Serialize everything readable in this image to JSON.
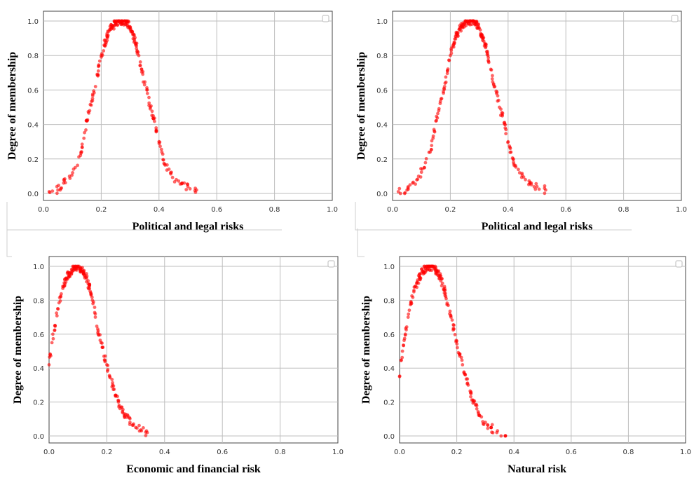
{
  "chart_data": [
    {
      "type": "scatter",
      "xlabel": "Political and legal risks",
      "ylabel": "Degree of membership",
      "xlim": [
        0,
        1
      ],
      "ylim": [
        0,
        1
      ],
      "xticks": [
        "0.0",
        "0.2",
        "0.4",
        "0.6",
        "0.8",
        "1.0"
      ],
      "yticks": [
        "0.0",
        "0.2",
        "0.4",
        "0.6",
        "0.8",
        "1.0"
      ],
      "grid": true,
      "point_color": "#ff0000",
      "peak_x": 0.27,
      "peak_y": 1.0,
      "x_range": [
        0.02,
        0.53
      ],
      "points": [
        [
          0.02,
          0.01
        ],
        [
          0.05,
          0.02
        ],
        [
          0.07,
          0.06
        ],
        [
          0.09,
          0.1
        ],
        [
          0.11,
          0.15
        ],
        [
          0.13,
          0.24
        ],
        [
          0.14,
          0.32
        ],
        [
          0.15,
          0.42
        ],
        [
          0.16,
          0.48
        ],
        [
          0.17,
          0.55
        ],
        [
          0.18,
          0.62
        ],
        [
          0.19,
          0.71
        ],
        [
          0.2,
          0.8
        ],
        [
          0.21,
          0.86
        ],
        [
          0.22,
          0.91
        ],
        [
          0.23,
          0.95
        ],
        [
          0.24,
          0.97
        ],
        [
          0.25,
          0.99
        ],
        [
          0.26,
          1.0
        ],
        [
          0.27,
          1.0
        ],
        [
          0.28,
          1.0
        ],
        [
          0.29,
          0.99
        ],
        [
          0.3,
          0.96
        ],
        [
          0.31,
          0.92
        ],
        [
          0.32,
          0.87
        ],
        [
          0.33,
          0.8
        ],
        [
          0.34,
          0.72
        ],
        [
          0.35,
          0.63
        ],
        [
          0.36,
          0.58
        ],
        [
          0.37,
          0.5
        ],
        [
          0.38,
          0.45
        ],
        [
          0.39,
          0.38
        ],
        [
          0.4,
          0.3
        ],
        [
          0.41,
          0.24
        ],
        [
          0.42,
          0.17
        ],
        [
          0.44,
          0.12
        ],
        [
          0.46,
          0.08
        ],
        [
          0.48,
          0.06
        ],
        [
          0.5,
          0.04
        ],
        [
          0.53,
          0.02
        ]
      ]
    },
    {
      "type": "scatter",
      "xlabel": "Political and legal risks",
      "ylabel": "Degree of membership",
      "xlim": [
        0,
        1
      ],
      "ylim": [
        0,
        1
      ],
      "xticks": [
        "0.0",
        "0.2",
        "0.4",
        "0.6",
        "0.8",
        "1.0"
      ],
      "yticks": [
        "0.0",
        "0.2",
        "0.4",
        "0.6",
        "0.8",
        "1.0"
      ],
      "grid": true,
      "point_color": "#ff0000",
      "peak_x": 0.27,
      "peak_y": 1.0,
      "x_range": [
        0.02,
        0.53
      ],
      "points": [
        [
          0.02,
          0.01
        ],
        [
          0.05,
          0.02
        ],
        [
          0.07,
          0.06
        ],
        [
          0.09,
          0.1
        ],
        [
          0.11,
          0.15
        ],
        [
          0.13,
          0.24
        ],
        [
          0.14,
          0.32
        ],
        [
          0.15,
          0.42
        ],
        [
          0.16,
          0.48
        ],
        [
          0.17,
          0.55
        ],
        [
          0.18,
          0.62
        ],
        [
          0.19,
          0.71
        ],
        [
          0.2,
          0.8
        ],
        [
          0.21,
          0.86
        ],
        [
          0.22,
          0.91
        ],
        [
          0.23,
          0.95
        ],
        [
          0.24,
          0.97
        ],
        [
          0.25,
          0.99
        ],
        [
          0.26,
          1.0
        ],
        [
          0.27,
          1.0
        ],
        [
          0.28,
          1.0
        ],
        [
          0.29,
          0.99
        ],
        [
          0.3,
          0.96
        ],
        [
          0.31,
          0.92
        ],
        [
          0.32,
          0.87
        ],
        [
          0.33,
          0.8
        ],
        [
          0.34,
          0.72
        ],
        [
          0.35,
          0.63
        ],
        [
          0.36,
          0.58
        ],
        [
          0.37,
          0.5
        ],
        [
          0.38,
          0.45
        ],
        [
          0.39,
          0.38
        ],
        [
          0.4,
          0.3
        ],
        [
          0.41,
          0.24
        ],
        [
          0.42,
          0.17
        ],
        [
          0.44,
          0.12
        ],
        [
          0.46,
          0.08
        ],
        [
          0.48,
          0.06
        ],
        [
          0.5,
          0.04
        ],
        [
          0.53,
          0.02
        ]
      ]
    },
    {
      "type": "scatter",
      "xlabel": "Economic and financial risk",
      "ylabel": "Degree of membership",
      "xlim": [
        0,
        1
      ],
      "ylim": [
        0,
        1
      ],
      "xticks": [
        "0.0",
        "0.2",
        "0.4",
        "0.6",
        "0.8",
        "1.0"
      ],
      "yticks": [
        "0.0",
        "0.2",
        "0.4",
        "0.6",
        "0.8",
        "1.0"
      ],
      "grid": true,
      "point_color": "#ff0000",
      "peak_x": 0.1,
      "peak_y": 1.0,
      "x_range": [
        0.0,
        0.34
      ],
      "points": [
        [
          0.0,
          0.42
        ],
        [
          0.01,
          0.55
        ],
        [
          0.02,
          0.65
        ],
        [
          0.03,
          0.75
        ],
        [
          0.04,
          0.82
        ],
        [
          0.05,
          0.88
        ],
        [
          0.06,
          0.93
        ],
        [
          0.07,
          0.96
        ],
        [
          0.08,
          0.98
        ],
        [
          0.09,
          1.0
        ],
        [
          0.1,
          1.0
        ],
        [
          0.11,
          0.99
        ],
        [
          0.12,
          0.97
        ],
        [
          0.13,
          0.93
        ],
        [
          0.14,
          0.87
        ],
        [
          0.15,
          0.8
        ],
        [
          0.16,
          0.72
        ],
        [
          0.17,
          0.62
        ],
        [
          0.18,
          0.55
        ],
        [
          0.19,
          0.47
        ],
        [
          0.2,
          0.42
        ],
        [
          0.21,
          0.35
        ],
        [
          0.22,
          0.3
        ],
        [
          0.23,
          0.24
        ],
        [
          0.24,
          0.2
        ],
        [
          0.25,
          0.17
        ],
        [
          0.26,
          0.13
        ],
        [
          0.27,
          0.11
        ],
        [
          0.28,
          0.08
        ],
        [
          0.3,
          0.05
        ],
        [
          0.32,
          0.03
        ],
        [
          0.34,
          0.02
        ]
      ]
    },
    {
      "type": "scatter",
      "xlabel": "Natural risk",
      "ylabel": "Degree of membership",
      "xlim": [
        0,
        1
      ],
      "ylim": [
        0,
        1
      ],
      "xticks": [
        "0.0",
        "0.2",
        "0.4",
        "0.6",
        "0.8",
        "1.0"
      ],
      "yticks": [
        "0.0",
        "0.2",
        "0.4",
        "0.6",
        "0.8",
        "1.0"
      ],
      "grid": true,
      "point_color": "#ff0000",
      "peak_x": 0.11,
      "peak_y": 1.0,
      "x_range": [
        0.0,
        0.37
      ],
      "points": [
        [
          0.0,
          0.35
        ],
        [
          0.01,
          0.5
        ],
        [
          0.02,
          0.6
        ],
        [
          0.03,
          0.7
        ],
        [
          0.04,
          0.78
        ],
        [
          0.05,
          0.85
        ],
        [
          0.06,
          0.9
        ],
        [
          0.07,
          0.94
        ],
        [
          0.08,
          0.97
        ],
        [
          0.09,
          0.99
        ],
        [
          0.1,
          1.0
        ],
        [
          0.11,
          1.0
        ],
        [
          0.12,
          0.99
        ],
        [
          0.13,
          0.97
        ],
        [
          0.14,
          0.94
        ],
        [
          0.15,
          0.9
        ],
        [
          0.16,
          0.84
        ],
        [
          0.17,
          0.77
        ],
        [
          0.18,
          0.7
        ],
        [
          0.19,
          0.63
        ],
        [
          0.2,
          0.56
        ],
        [
          0.21,
          0.48
        ],
        [
          0.22,
          0.42
        ],
        [
          0.23,
          0.36
        ],
        [
          0.24,
          0.3
        ],
        [
          0.25,
          0.25
        ],
        [
          0.26,
          0.2
        ],
        [
          0.27,
          0.16
        ],
        [
          0.28,
          0.12
        ],
        [
          0.3,
          0.08
        ],
        [
          0.32,
          0.05
        ],
        [
          0.34,
          0.02
        ],
        [
          0.37,
          0.0
        ]
      ]
    }
  ]
}
